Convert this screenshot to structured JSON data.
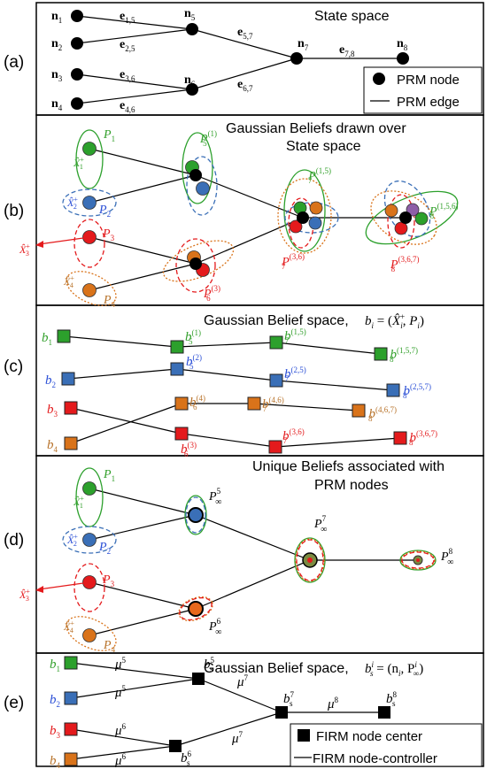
{
  "panel_labels": [
    "(a)",
    "(b)",
    "(c)",
    "(d)",
    "(e)"
  ],
  "a": {
    "title": "State space",
    "nodes": [
      "n",
      "n",
      "n",
      "n",
      "n",
      "n",
      "n",
      "n"
    ],
    "node_subs": [
      "1",
      "2",
      "3",
      "4",
      "5",
      "6",
      "7",
      "8"
    ],
    "edge_letter": "e",
    "edge_subs": [
      "1,5",
      "2,5",
      "3,6",
      "4,6",
      "5,7",
      "6,7",
      "7,8"
    ],
    "legend": {
      "node": "PRM node",
      "edge": "PRM edge"
    }
  },
  "b": {
    "title_line1": "Gaussian Beliefs drawn over",
    "title_line2": "State space",
    "P": "P",
    "X": "X̂",
    "plus": "+",
    "labels": {
      "p1": "1",
      "p2": "2",
      "p3": "3",
      "p4": "4",
      "p5": "(1)",
      "p5_sub": "5",
      "p6": "(3)",
      "p6_sub": "6",
      "p7a": "(1,5)",
      "p7a_sub": "7",
      "p7b": "(3,6)",
      "p7b_sub": "7",
      "p8a": "(1,5,6)",
      "p8a_sub": "8",
      "p8b": "(3,6,7)",
      "p8b_sub": "8",
      "x1": "1",
      "x2": "2",
      "x3": "3",
      "x4": "4"
    }
  },
  "c": {
    "title": "Gaussian Belief space,",
    "formula_b": "b",
    "formula_i": "i",
    "formula_eq": " = (",
    "formula_x": "X̂",
    "formula_plus": "+",
    "formula_comma": ", ",
    "formula_p": "P",
    "formula_end": ")",
    "b": "b",
    "items": [
      {
        "sub": "1",
        "sup": ""
      },
      {
        "sub": "2",
        "sup": ""
      },
      {
        "sub": "3",
        "sup": ""
      },
      {
        "sub": "4",
        "sup": ""
      },
      {
        "sub": "5",
        "sup": "(1)"
      },
      {
        "sub": "5",
        "sup": "(2)"
      },
      {
        "sub": "6",
        "sup": "(4)"
      },
      {
        "sub": "6",
        "sup": "(3)"
      },
      {
        "sub": "7",
        "sup": "(1,5)"
      },
      {
        "sub": "7",
        "sup": "(2,5)"
      },
      {
        "sub": "7",
        "sup": "(4,6)"
      },
      {
        "sub": "7",
        "sup": "(3,6)"
      },
      {
        "sub": "8",
        "sup": "(1,5,7)"
      },
      {
        "sub": "8",
        "sup": "(2,5,7)"
      },
      {
        "sub": "8",
        "sup": "(4,6,7)"
      },
      {
        "sub": "8",
        "sup": "(3,6,7)"
      }
    ]
  },
  "d": {
    "title_line1": "Unique Beliefs associated with",
    "title_line2": "PRM nodes",
    "P": "P",
    "inf": "∞",
    "sups": {
      "p5": "5",
      "p6": "6",
      "p7": "7",
      "p8": "8"
    }
  },
  "e": {
    "title": "Gaussian Belief space,",
    "formula": "b",
    "formula_sub": "s",
    "formula_sup": "i",
    "formula_rest": " = (n",
    "formula_rest_sub": "i",
    "formula_rest2": ", P",
    "formula_rest2_sub": "∞",
    "formula_rest2_sup": "i",
    "formula_end": ")",
    "mu": "μ",
    "mu_sups": [
      "5",
      "5",
      "6",
      "6",
      "7",
      "7",
      "8"
    ],
    "bs": "b",
    "bs_sub": "s",
    "bs_sups": [
      "5",
      "6",
      "7",
      "8"
    ],
    "b": "b",
    "b_subs": [
      "1",
      "2",
      "3",
      "4"
    ],
    "legend": {
      "node": "FIRM node center",
      "edge": "FIRM node-controller"
    }
  },
  "colors": {
    "green": "#2ca02c",
    "blue": "#3a6fb7",
    "red": "#e41a1c",
    "orange": "#d9731a",
    "brown": "#b5651d",
    "green_text": "#33a02c",
    "blue_text": "#2b4fd6",
    "red_text": "#e31a1c",
    "orange_text": "#b8732b"
  }
}
